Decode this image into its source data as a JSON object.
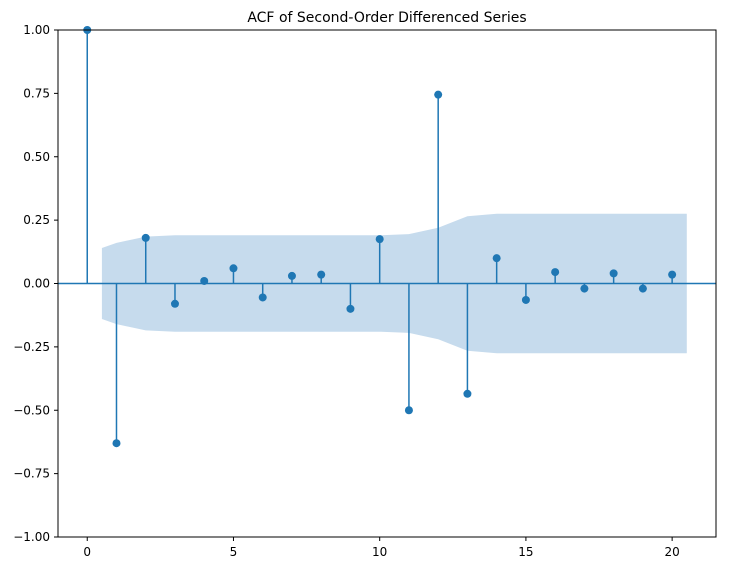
{
  "chart_data": {
    "type": "stem",
    "title": "ACF of Second-Order Differenced Series",
    "xlabel": "",
    "ylabel": "",
    "xlim": [
      -1,
      21.5
    ],
    "ylim": [
      -1.0,
      1.0
    ],
    "x_ticks": [
      0,
      5,
      10,
      15,
      20
    ],
    "x_tick_labels": [
      "0",
      "5",
      "10",
      "15",
      "20"
    ],
    "y_ticks": [
      1.0,
      0.75,
      0.5,
      0.25,
      0.0,
      -0.25,
      -0.5,
      -0.75,
      -1.0
    ],
    "y_tick_labels": [
      "1.00",
      "0.75",
      "0.50",
      "0.25",
      "0.00",
      "−0.25",
      "−0.50",
      "−0.75",
      "−1.00"
    ],
    "grid": false,
    "series": [
      {
        "lags": [
          0,
          1,
          2,
          3,
          4,
          5,
          6,
          7,
          8,
          9,
          10,
          11,
          12,
          13,
          14,
          15,
          16,
          17,
          18,
          19,
          20
        ],
        "values": [
          1.0,
          -0.63,
          0.18,
          -0.08,
          0.01,
          0.06,
          -0.055,
          0.03,
          0.035,
          -0.1,
          0.175,
          -0.5,
          0.745,
          -0.435,
          0.1,
          -0.065,
          0.045,
          -0.02,
          0.04,
          -0.02,
          0.035
        ]
      }
    ],
    "confidence_band": {
      "lags": [
        0.5,
        1,
        2,
        3,
        4,
        5,
        6,
        7,
        8,
        9,
        10,
        11,
        12,
        13,
        14,
        15,
        16,
        17,
        18,
        19,
        20,
        20.5
      ],
      "upper": [
        0.14,
        0.16,
        0.185,
        0.19,
        0.19,
        0.19,
        0.19,
        0.19,
        0.19,
        0.19,
        0.19,
        0.195,
        0.22,
        0.265,
        0.275,
        0.275,
        0.275,
        0.275,
        0.275,
        0.275,
        0.275,
        0.275
      ]
    },
    "colors": {
      "stem": "#1f77b4",
      "marker": "#1f77b4",
      "band": "#c6dbed",
      "zero_line": "#1f77b4"
    }
  }
}
